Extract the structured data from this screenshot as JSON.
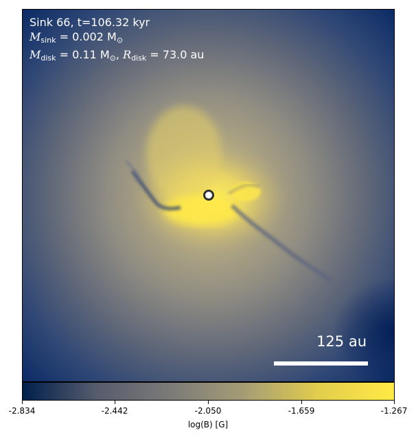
{
  "header": {
    "title": "Sink 66, t=106.32 kyr",
    "msink_symbol": "M",
    "msink_sub": "sink",
    "msink_value": " = 0.002 M",
    "msink_unit_sub": "⊙",
    "mdisk_symbol": "M",
    "mdisk_sub": "disk",
    "mdisk_value": " = 0.11 M",
    "mdisk_unit_sub": "⊙",
    "rdisk_sep": ", ",
    "rdisk_symbol": "R",
    "rdisk_sub": "disk",
    "rdisk_value": " = 73.0 au"
  },
  "scale_bar": {
    "label": "125 au"
  },
  "colorbar": {
    "label": "log(B) [G]",
    "ticks": [
      "-2.834",
      "-2.442",
      "-2.050",
      "-1.659",
      "-1.267"
    ],
    "colors": [
      "#00204c",
      "#575c6d",
      "#7c7b78",
      "#a69d75",
      "#e3ce4c",
      "#ffea46"
    ]
  }
}
